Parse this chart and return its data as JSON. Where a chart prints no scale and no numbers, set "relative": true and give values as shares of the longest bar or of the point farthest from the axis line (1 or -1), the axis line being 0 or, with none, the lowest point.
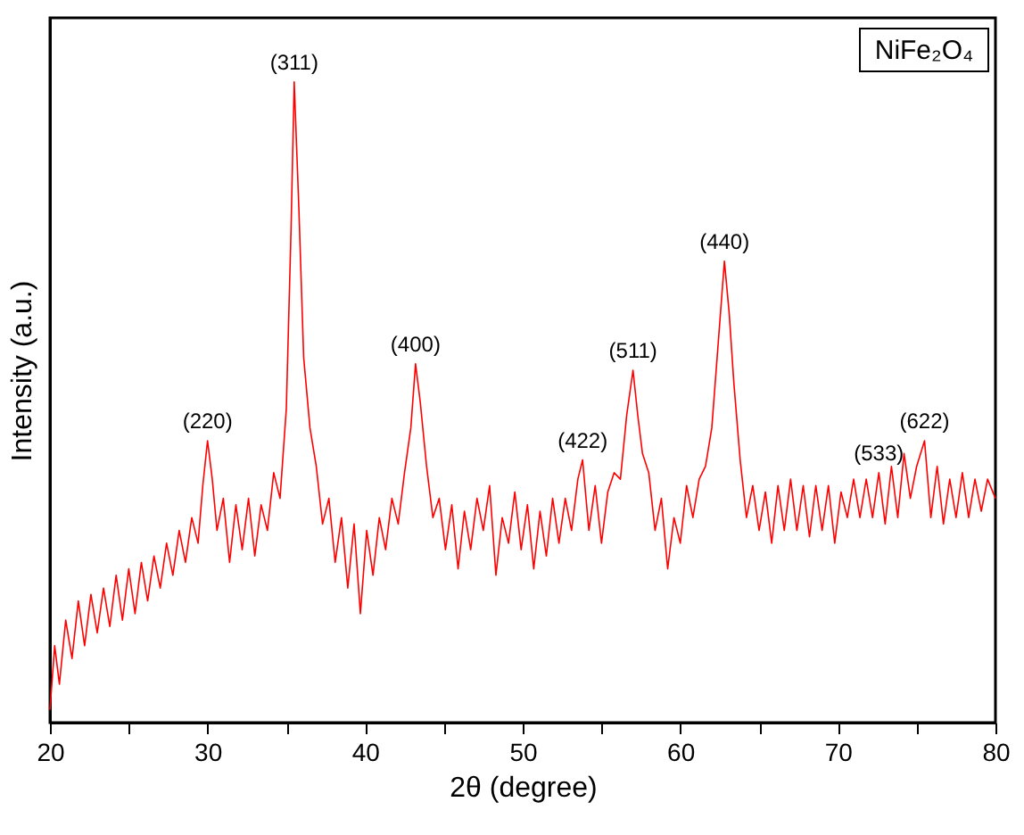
{
  "chart_data": {
    "type": "line",
    "xlabel": "2θ (degree)",
    "ylabel": "Intensity (a.u.)",
    "relative": true,
    "xlim": [
      20,
      80
    ],
    "xticks": [
      20,
      {
        "value": 25,
        "label": null
      },
      30,
      {
        "value": 35,
        "label": null
      },
      40,
      {
        "value": 45,
        "label": null
      },
      50,
      {
        "value": 55,
        "label": null
      },
      60,
      {
        "value": 65,
        "label": null
      },
      70,
      {
        "value": 75,
        "label": null
      },
      80
    ],
    "tick_labels": "x",
    "grid": false,
    "marker": "none",
    "line_style": "solid",
    "series": [
      {
        "color": "#ff0000",
        "x": [
          20.0,
          20.3,
          20.6,
          21.0,
          21.4,
          21.8,
          22.2,
          22.6,
          23.0,
          23.4,
          23.8,
          24.2,
          24.6,
          25.0,
          25.4,
          25.8,
          26.2,
          26.6,
          27.0,
          27.4,
          27.8,
          28.2,
          28.6,
          29.0,
          29.4,
          29.7,
          30.0,
          30.3,
          30.6,
          31.0,
          31.4,
          31.8,
          32.2,
          32.6,
          33.0,
          33.4,
          33.8,
          34.2,
          34.6,
          35.0,
          35.3,
          35.5,
          35.8,
          36.1,
          36.5,
          36.9,
          37.3,
          37.7,
          38.1,
          38.5,
          38.9,
          39.3,
          39.7,
          40.1,
          40.5,
          40.9,
          41.3,
          41.7,
          42.1,
          42.5,
          42.9,
          43.2,
          43.5,
          43.9,
          44.3,
          44.7,
          45.1,
          45.5,
          45.9,
          46.3,
          46.7,
          47.1,
          47.5,
          47.9,
          48.3,
          48.7,
          49.1,
          49.5,
          49.9,
          50.3,
          50.7,
          51.1,
          51.5,
          51.9,
          52.3,
          52.7,
          53.1,
          53.5,
          53.8,
          54.2,
          54.6,
          55.0,
          55.4,
          55.8,
          56.2,
          56.6,
          57.0,
          57.3,
          57.6,
          58.0,
          58.4,
          58.8,
          59.2,
          59.6,
          60.0,
          60.4,
          60.8,
          61.2,
          61.6,
          62.0,
          62.4,
          62.8,
          63.1,
          63.4,
          63.8,
          64.2,
          64.6,
          65.0,
          65.4,
          65.8,
          66.2,
          66.6,
          67.0,
          67.4,
          67.8,
          68.2,
          68.6,
          69.0,
          69.4,
          69.8,
          70.2,
          70.6,
          71.0,
          71.4,
          71.8,
          72.2,
          72.6,
          73.0,
          73.4,
          73.8,
          74.2,
          74.6,
          75.0,
          75.5,
          75.9,
          76.3,
          76.7,
          77.1,
          77.5,
          77.9,
          78.3,
          78.7,
          79.1,
          79.5,
          80.0
        ],
        "values": [
          0.02,
          0.12,
          0.06,
          0.16,
          0.1,
          0.19,
          0.12,
          0.2,
          0.14,
          0.21,
          0.15,
          0.23,
          0.16,
          0.24,
          0.17,
          0.25,
          0.19,
          0.26,
          0.21,
          0.28,
          0.23,
          0.3,
          0.25,
          0.32,
          0.28,
          0.37,
          0.44,
          0.38,
          0.3,
          0.35,
          0.25,
          0.34,
          0.27,
          0.35,
          0.26,
          0.34,
          0.3,
          0.39,
          0.35,
          0.49,
          0.77,
          1.0,
          0.8,
          0.57,
          0.46,
          0.4,
          0.31,
          0.35,
          0.25,
          0.32,
          0.21,
          0.31,
          0.17,
          0.3,
          0.23,
          0.32,
          0.27,
          0.35,
          0.31,
          0.39,
          0.46,
          0.56,
          0.5,
          0.4,
          0.32,
          0.35,
          0.27,
          0.34,
          0.24,
          0.33,
          0.27,
          0.35,
          0.3,
          0.37,
          0.23,
          0.32,
          0.28,
          0.36,
          0.27,
          0.34,
          0.24,
          0.33,
          0.26,
          0.35,
          0.28,
          0.35,
          0.3,
          0.38,
          0.41,
          0.3,
          0.37,
          0.28,
          0.36,
          0.39,
          0.38,
          0.48,
          0.55,
          0.48,
          0.42,
          0.39,
          0.3,
          0.35,
          0.24,
          0.32,
          0.28,
          0.37,
          0.32,
          0.38,
          0.4,
          0.46,
          0.59,
          0.72,
          0.64,
          0.53,
          0.41,
          0.32,
          0.37,
          0.3,
          0.36,
          0.28,
          0.37,
          0.3,
          0.38,
          0.3,
          0.37,
          0.29,
          0.37,
          0.3,
          0.37,
          0.28,
          0.36,
          0.32,
          0.38,
          0.32,
          0.38,
          0.32,
          0.39,
          0.31,
          0.4,
          0.32,
          0.42,
          0.35,
          0.4,
          0.44,
          0.32,
          0.4,
          0.31,
          0.38,
          0.32,
          0.39,
          0.32,
          0.38,
          0.33,
          0.38,
          0.35
        ]
      }
    ],
    "annotations": [
      {
        "text": "(220)",
        "x": 30.0,
        "y": 0.44
      },
      {
        "text": "(311)",
        "x": 35.5,
        "y": 1.0
      },
      {
        "text": "(400)",
        "x": 43.2,
        "y": 0.56
      },
      {
        "text": "(422)",
        "x": 53.8,
        "y": 0.41
      },
      {
        "text": "(511)",
        "x": 57.0,
        "y": 0.55
      },
      {
        "text": "(440)",
        "x": 62.8,
        "y": 0.72
      },
      {
        "text": "(533)",
        "x": 72.6,
        "y": 0.39
      },
      {
        "text": "(622)",
        "x": 75.5,
        "y": 0.44
      },
      "NiFe₂O₄"
    ]
  }
}
